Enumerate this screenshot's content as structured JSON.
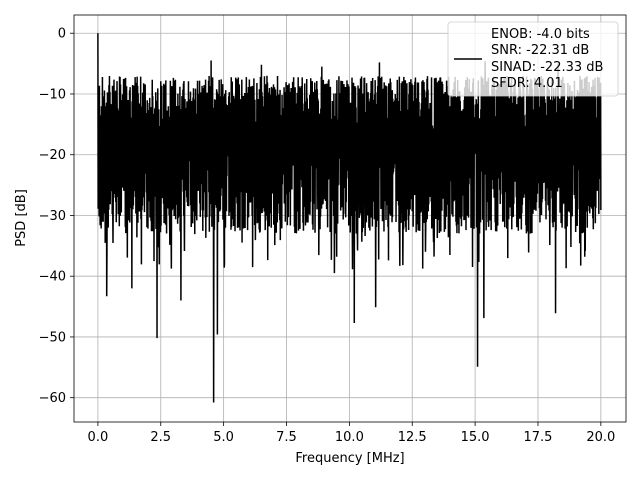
{
  "chart_data": {
    "type": "line",
    "xlabel": "Frequency [MHz]",
    "ylabel": "PSD [dB]",
    "xlim": [
      -0.95,
      21.0
    ],
    "ylim": [
      -64.0,
      3.0
    ],
    "xticks": [
      0.0,
      2.5,
      5.0,
      7.5,
      10.0,
      12.5,
      15.0,
      17.5,
      20.0
    ],
    "xtick_labels": [
      "0.0",
      "2.5",
      "5.0",
      "7.5",
      "10.0",
      "12.5",
      "15.0",
      "17.5",
      "20.0"
    ],
    "yticks": [
      0,
      -10,
      -20,
      -30,
      -40,
      -50,
      -60
    ],
    "ytick_labels": [
      "0",
      "−10",
      "−20",
      "−30",
      "−40",
      "−50",
      "−60"
    ],
    "grid": true,
    "legend_position": "top-right",
    "legend_entries": [
      "ENOB: -4.0 bits",
      "SNR: -22.31 dB",
      "SINAD: -22.33 dB",
      "SFDR: 4.01"
    ],
    "series": [
      {
        "color": "#000000",
        "x_start": 0.0,
        "x_end": 20.0,
        "num_points": 2000,
        "noise_floor_dB": -18,
        "noise_band_dB": [
          -33,
          -7
        ],
        "notable_points": [
          {
            "x": 0.0,
            "y": 0.0
          },
          {
            "x": 0.08,
            "y": -28
          },
          {
            "x": 0.35,
            "y": -43.3
          },
          {
            "x": 1.35,
            "y": -42
          },
          {
            "x": 2.35,
            "y": -50.2
          },
          {
            "x": 3.3,
            "y": -44
          },
          {
            "x": 4.6,
            "y": -60.8
          },
          {
            "x": 4.75,
            "y": -49.6
          },
          {
            "x": 6.15,
            "y": -38.5
          },
          {
            "x": 9.4,
            "y": -39.5
          },
          {
            "x": 10.2,
            "y": -47.7
          },
          {
            "x": 11.05,
            "y": -45.1
          },
          {
            "x": 15.1,
            "y": -54.9
          },
          {
            "x": 15.35,
            "y": -46.9
          },
          {
            "x": 18.2,
            "y": -46.1
          },
          {
            "x": 4.5,
            "y": -4.5
          },
          {
            "x": 6.5,
            "y": -5.2
          },
          {
            "x": 8.9,
            "y": -5.5
          },
          {
            "x": 11.2,
            "y": -4.8
          },
          {
            "x": 15.4,
            "y": -4.6
          },
          {
            "x": 18.3,
            "y": -5.0
          }
        ]
      }
    ]
  }
}
